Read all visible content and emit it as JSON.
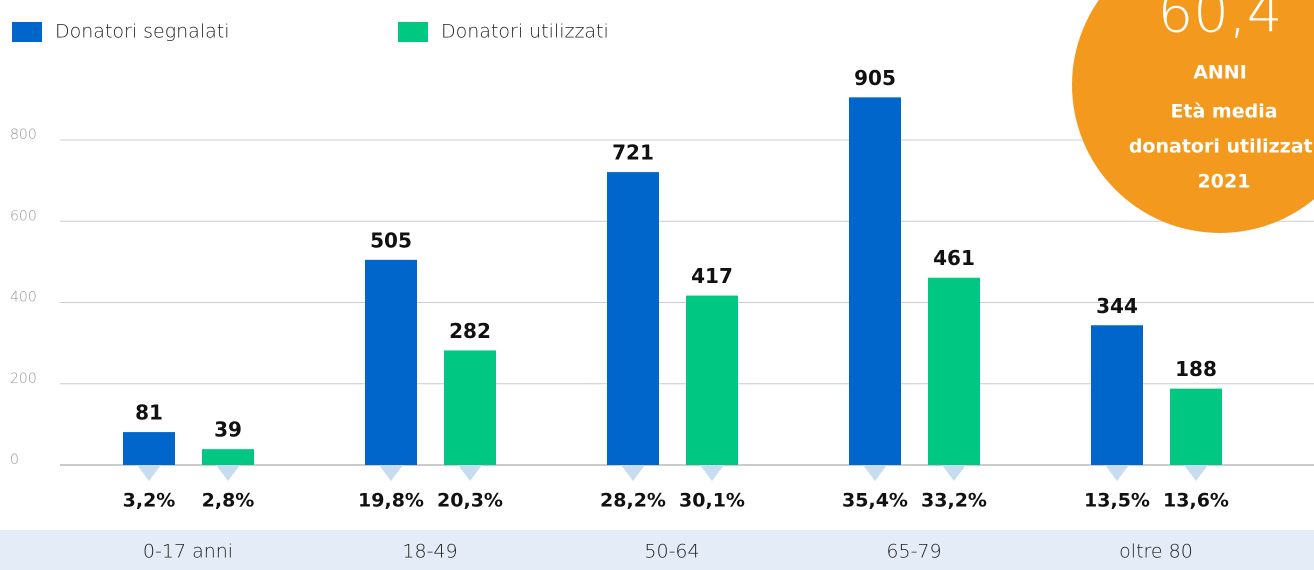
{
  "chart_data": {
    "type": "bar",
    "categories": [
      "0-17 anni",
      "18-49",
      "50-64",
      "65-79",
      "oltre 80"
    ],
    "series": [
      {
        "name": "Donatori segnalati",
        "color": "#0066cc",
        "values": [
          81,
          505,
          721,
          905,
          344
        ],
        "shares": [
          3.2,
          19.8,
          28.2,
          35.4,
          13.5
        ],
        "share_labels": [
          "3,2%",
          "19,8%",
          "28,2%",
          "35,4%",
          "13,5%"
        ]
      },
      {
        "name": "Donatori utilizzati",
        "color": "#00c882",
        "values": [
          39,
          282,
          417,
          461,
          188
        ],
        "shares": [
          2.8,
          20.3,
          30.1,
          33.2,
          13.6
        ],
        "share_labels": [
          "2,8%",
          "20,3%",
          "30,1%",
          "33,2%",
          "13,6%"
        ]
      }
    ],
    "ylim": [
      0,
      1000
    ],
    "yticks": [
      0,
      200,
      400,
      600,
      800
    ],
    "grid": true,
    "annotation": {
      "value_label": "60,4",
      "unit": "ANNI",
      "lines": [
        "Età media",
        "donatori utilizzati",
        "2021"
      ],
      "color": "#f39a1e"
    }
  }
}
